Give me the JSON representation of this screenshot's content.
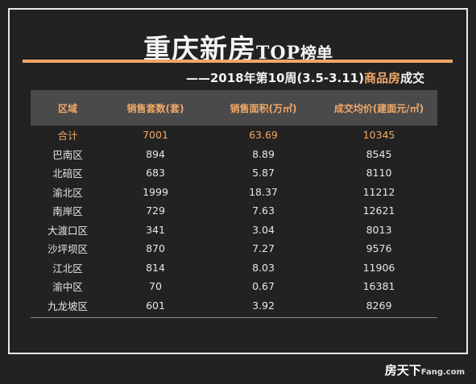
{
  "title": {
    "main": "重庆新房",
    "top": "TOP",
    "rank": "榜单"
  },
  "subtitle": {
    "prefix": "——2018年第10周(3.5-3.11)",
    "highlight": "商品房",
    "suffix": "成交"
  },
  "table": {
    "headers": [
      "区域",
      "销售套数(套)",
      "销售面积(万㎡)",
      "成交均价(建面元/㎡)"
    ],
    "total": [
      "合计",
      "7001",
      "63.69",
      "10345"
    ],
    "rows": [
      [
        "巴南区",
        "894",
        "8.89",
        "8545"
      ],
      [
        "北碚区",
        "683",
        "5.87",
        "8110"
      ],
      [
        "渝北区",
        "1999",
        "18.37",
        "11212"
      ],
      [
        "南岸区",
        "729",
        "7.63",
        "12621"
      ],
      [
        "大渡口区",
        "341",
        "3.04",
        "8013"
      ],
      [
        "沙坪坝区",
        "870",
        "7.27",
        "9576"
      ],
      [
        "江北区",
        "814",
        "8.03",
        "11906"
      ],
      [
        "渝中区",
        "70",
        "0.67",
        "16381"
      ],
      [
        "九龙坡区",
        "601",
        "3.92",
        "8269"
      ]
    ]
  },
  "logo": {
    "main": "房天下",
    "domain": "Fang.com"
  },
  "colors": {
    "accent": "#f0a868",
    "background": "#222222",
    "header_bg": "#4a4a4a"
  }
}
